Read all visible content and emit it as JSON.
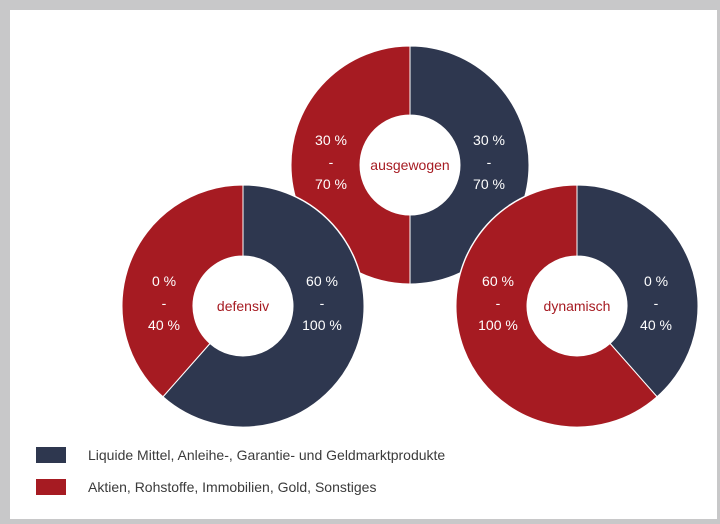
{
  "colors": {
    "navy": "#2e374f",
    "red": "#a61b22",
    "pct_text_on_dark": "#ffffff",
    "center_label": "#a61b22"
  },
  "chart_data": {
    "type": "pie",
    "donuts": [
      {
        "name": "defensiv",
        "series": [
          {
            "label": "60 %\n-\n100 %",
            "value": 61.5,
            "color": "navy"
          },
          {
            "label": "0 %\n-\n40 %",
            "value": 38.5,
            "color": "red"
          }
        ]
      },
      {
        "name": "ausgewogen",
        "series": [
          {
            "label": "30 %\n-\n70 %",
            "value": 50,
            "color": "navy"
          },
          {
            "label": "30 %\n-\n70 %",
            "value": 50,
            "color": "red"
          }
        ]
      },
      {
        "name": "dynamisch",
        "series": [
          {
            "label": "0 %\n-\n40 %",
            "value": 38.5,
            "color": "navy"
          },
          {
            "label": "60 %\n-\n100 %",
            "value": 61.5,
            "color": "red"
          }
        ]
      }
    ],
    "legend": [
      {
        "label": "Liquide Mittel, Anleihe-, Garantie- und Geldmarktprodukte",
        "color": "navy"
      },
      {
        "label": "Aktien, Rohstoffe, Immobilien, Gold, Sonstiges",
        "color": "red"
      }
    ]
  }
}
